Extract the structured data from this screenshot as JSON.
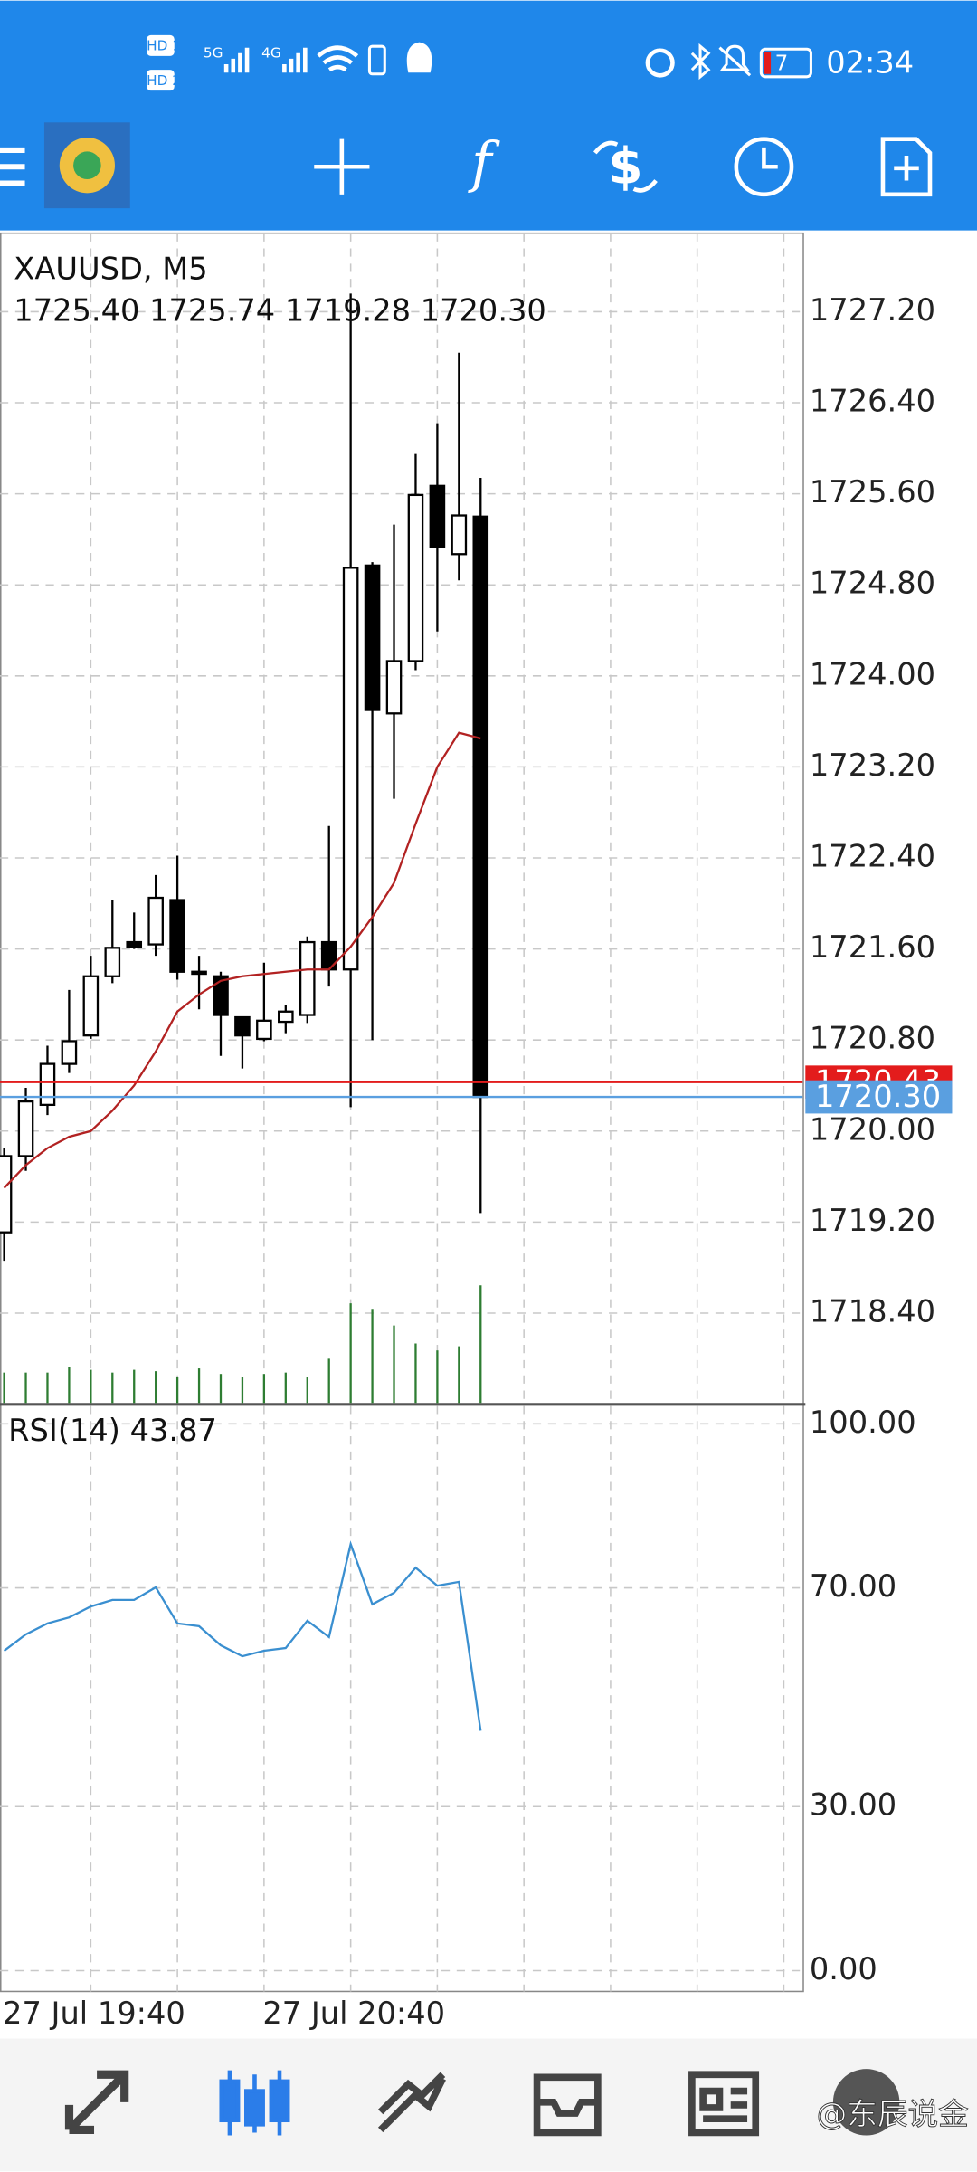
{
  "status_bar": {
    "sim1": "HD 1",
    "sim2": "HD 2",
    "net1": "5G",
    "net2": "4G",
    "battery": "7",
    "time": "02:34"
  },
  "chart_data": [
    {
      "type": "candlestick",
      "title": "XAUUSD, M5",
      "subtitle": "1725.40 1725.74 1719.28 1720.30",
      "categories": [
        "27 Jul 19:40",
        null,
        null,
        null,
        null,
        null,
        null,
        null,
        null,
        null,
        null,
        null,
        "27 Jul 20:40",
        null,
        null,
        null,
        null,
        null,
        null,
        null,
        null,
        null,
        null
      ],
      "open": [
        1719.11,
        1719.78,
        1720.23,
        1720.59,
        1720.84,
        1721.36,
        1721.66,
        1721.64,
        1722.03,
        1721.4,
        1721.36,
        1721.0,
        1720.81,
        1720.96,
        1721.02,
        1721.66,
        1721.42,
        1724.97,
        1723.67,
        1724.13,
        1725.67,
        1725.07,
        1725.4
      ],
      "high": [
        1719.85,
        1720.38,
        1720.75,
        1721.24,
        1721.54,
        1722.03,
        1721.92,
        1722.25,
        1722.42,
        1721.54,
        1721.4,
        1721.0,
        1721.48,
        1721.11,
        1721.71,
        1722.68,
        1727.36,
        1725.0,
        1725.33,
        1725.95,
        1726.22,
        1726.84,
        1725.74
      ],
      "low": [
        1718.86,
        1719.65,
        1720.14,
        1720.51,
        1720.81,
        1721.3,
        1721.6,
        1721.54,
        1721.33,
        1721.07,
        1720.66,
        1720.55,
        1720.79,
        1720.86,
        1720.95,
        1721.27,
        1720.21,
        1720.8,
        1722.92,
        1724.05,
        1724.39,
        1724.84,
        1719.28
      ],
      "close": [
        1719.78,
        1720.26,
        1720.59,
        1720.79,
        1721.36,
        1721.61,
        1721.62,
        1722.05,
        1721.4,
        1721.39,
        1721.02,
        1720.84,
        1720.97,
        1721.05,
        1721.66,
        1721.42,
        1724.95,
        1723.7,
        1724.13,
        1725.59,
        1725.13,
        1725.41,
        1720.3
      ],
      "up_color": "#ffffff",
      "down_color": "#000000",
      "ma": {
        "color": "#b22222",
        "values": [
          1719.5,
          1719.7,
          1719.85,
          1719.95,
          1720.0,
          1720.18,
          1720.4,
          1720.7,
          1721.05,
          1721.2,
          1721.32,
          1721.36,
          1721.38,
          1721.4,
          1721.42,
          1721.42,
          1721.62,
          1721.88,
          1722.18,
          1722.7,
          1723.2,
          1723.5,
          1723.45
        ]
      },
      "volume": {
        "color": "#2e7d32",
        "values": [
          22,
          22,
          22,
          26,
          24,
          22,
          24,
          23,
          19,
          25,
          21,
          19,
          21,
          22,
          19,
          32,
          72,
          68,
          56,
          43,
          38,
          41,
          85
        ]
      },
      "price_lines": [
        {
          "value": 1720.43,
          "label": "1720.43",
          "color": "#e31c1c"
        },
        {
          "value": 1720.3,
          "label": "1720.30",
          "color": "#5a9fe0"
        }
      ],
      "ylim": [
        1717.61,
        1727.89
      ],
      "yticks": [
        {
          "value": 1727.2,
          "label": "1727.20"
        },
        {
          "value": 1726.4,
          "label": "1726.40"
        },
        {
          "value": 1725.6,
          "label": "1725.60"
        },
        {
          "value": 1724.8,
          "label": "1724.80"
        },
        {
          "value": 1724.0,
          "label": "1724.00"
        },
        {
          "value": 1723.2,
          "label": "1723.20"
        },
        {
          "value": 1722.4,
          "label": "1722.40"
        },
        {
          "value": 1721.6,
          "label": "1721.60"
        },
        {
          "value": 1720.8,
          "label": "1720.80"
        },
        {
          "value": 1720.0,
          "label": "1720.00"
        },
        {
          "value": 1719.2,
          "label": "1719.20"
        },
        {
          "value": 1718.4,
          "label": "1718.40"
        }
      ],
      "grid": true
    },
    {
      "type": "line",
      "title": "RSI(14) 43.87",
      "series": [
        {
          "color": "#3a8fd0",
          "values": [
            58.5,
            61.5,
            63.5,
            64.6,
            66.6,
            67.8,
            67.8,
            70.1,
            63.5,
            63,
            59.5,
            57.5,
            58.5,
            59,
            64,
            61,
            78,
            67,
            69.1,
            73.7,
            70.4,
            71.1,
            43.87
          ]
        }
      ],
      "ylim": [
        -3.8,
        103.3
      ],
      "yticks": [
        {
          "value": 100,
          "label": "100.00"
        },
        {
          "value": 70,
          "label": "70.00"
        },
        {
          "value": 30,
          "label": "30.00"
        },
        {
          "value": 0,
          "label": "0.00"
        }
      ],
      "grid": true
    }
  ],
  "watermark": "@东辰说金"
}
